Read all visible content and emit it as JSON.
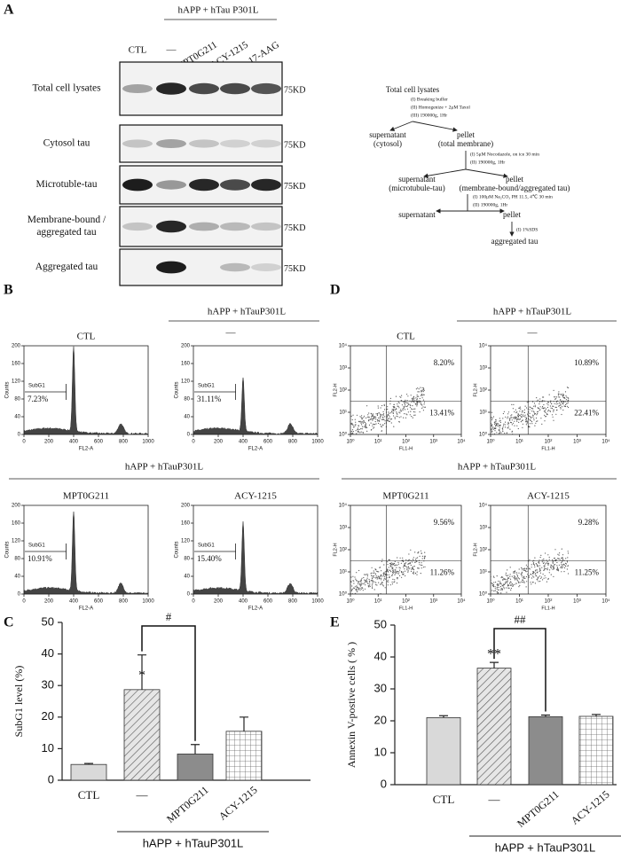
{
  "panels": [
    "A",
    "B",
    "C",
    "D",
    "E"
  ],
  "blot": {
    "group_label": "hAPP + hTau P301L",
    "lanes": [
      "CTL",
      "—",
      "MPT0G211",
      "ACY-1215",
      "17-AAG"
    ],
    "rows": [
      [
        "Total cell lysates"
      ],
      [
        "Cytosol tau"
      ],
      [
        "Microtuble-tau"
      ],
      [
        "Membrane-bound /",
        "aggregated tau"
      ],
      [
        "Aggregated tau"
      ]
    ],
    "marker": "75KD"
  },
  "flowchart": {
    "start": "Total cell lysates",
    "step1": [
      "(I) Breaking buffer",
      "(II) Homogenize + 2μM Taxol",
      "(III) 190000g, 1Hr"
    ],
    "supernatant1": [
      "supernatant",
      "(cytosol)"
    ],
    "pellet1": [
      "pellet",
      "(total membrane)"
    ],
    "step2": [
      "(I) 5μM Nocodazole, on ice 30 min",
      "(II) 190000g, 1Hr"
    ],
    "supernatant2": [
      "supernatant",
      "(microtubule-tau)"
    ],
    "pellet2": [
      "pellet",
      "(membrane-bound/aggregated tau)"
    ],
    "step3": [
      "(I) 100μM Na₂CO₃ PH 11.5, 4℃ 30 min",
      "(II) 190000g, 1Hr"
    ],
    "supernatant3": "supernatant",
    "pellet3": "pellet",
    "step4": "(I) 1%SDS",
    "end": "aggregated tau"
  },
  "cell_cycle": {
    "group_label": "hAPP + hTauP301L",
    "vehicle": "—",
    "gate": "SubG1",
    "plots": [
      {
        "title": "CTL",
        "percent": "7.23%"
      },
      {
        "percent": "31.11%"
      },
      {
        "title": "MPT0G211",
        "percent": "10.91%"
      },
      {
        "title": "ACY-1215",
        "percent": "15.40%"
      }
    ],
    "x_label": "FL2-A",
    "y_label": "Counts",
    "xlim": [
      0,
      1000
    ],
    "ylim": [
      0,
      200
    ],
    "xticks": [
      0,
      200,
      400,
      600,
      800,
      1000
    ],
    "yticks": [
      0,
      40,
      80,
      120,
      160,
      200
    ]
  },
  "annexin": {
    "group_label": "hAPP + hTauP301L",
    "vehicle": "—",
    "plots": [
      {
        "title": "CTL",
        "upper_right": "8.20%",
        "lower_right": "13.41%"
      },
      {
        "upper_right": "10.89%",
        "lower_right": "22.41%"
      },
      {
        "title": "MPT0G211",
        "upper_right": "9.56%",
        "lower_right": "11.26%"
      },
      {
        "title": "ACY-1215",
        "upper_right": "9.28%",
        "lower_right": "11.25%"
      }
    ],
    "x_label": "FL1-H",
    "y_label": "FL2-H",
    "log_scale": true,
    "lim": [
      1,
      10000
    ],
    "ticks": [
      {
        "value": 1,
        "label": "10⁰"
      },
      {
        "value": 10,
        "label": "10¹"
      },
      {
        "value": 100,
        "label": "10²"
      },
      {
        "value": 1000,
        "label": "10³"
      },
      {
        "value": 10000,
        "label": "10⁴"
      }
    ]
  },
  "chart_data": [
    {
      "type": "bar",
      "y_label": "SubG1 level (%)",
      "categories": [
        "CTL",
        "—",
        "MPT0G211",
        "ACY-1215"
      ],
      "values": [
        5,
        28.7,
        8.3,
        15.5
      ],
      "errors": [
        0.3,
        11,
        3,
        4.5
      ],
      "fills": [
        "#d9d9d9",
        "diagonal-hatch",
        "#8c8c8c",
        "grid"
      ],
      "ylim": [
        0,
        50
      ],
      "yticks": [
        0,
        10,
        20,
        30,
        40,
        50
      ],
      "group_label": "hAPP + hTauP301L",
      "significance": {
        "vs_control": "*",
        "vs_treated": "#"
      }
    },
    {
      "type": "bar",
      "y_label": "Annexin V-postive cells ( % )",
      "categories": [
        "CTL",
        "—",
        "MPT0G211",
        "ACY-1215"
      ],
      "values": [
        21,
        36.5,
        21.3,
        21.4
      ],
      "errors": [
        0.6,
        1.8,
        0.5,
        0.6
      ],
      "fills": [
        "#d9d9d9",
        "diagonal-hatch",
        "#8c8c8c",
        "grid"
      ],
      "ylim": [
        0,
        50
      ],
      "yticks": [
        0,
        10,
        20,
        30,
        40,
        50
      ],
      "group_label": "hAPP + hTauP301L",
      "significance": {
        "vs_control": "**",
        "vs_treated": "##"
      }
    }
  ]
}
